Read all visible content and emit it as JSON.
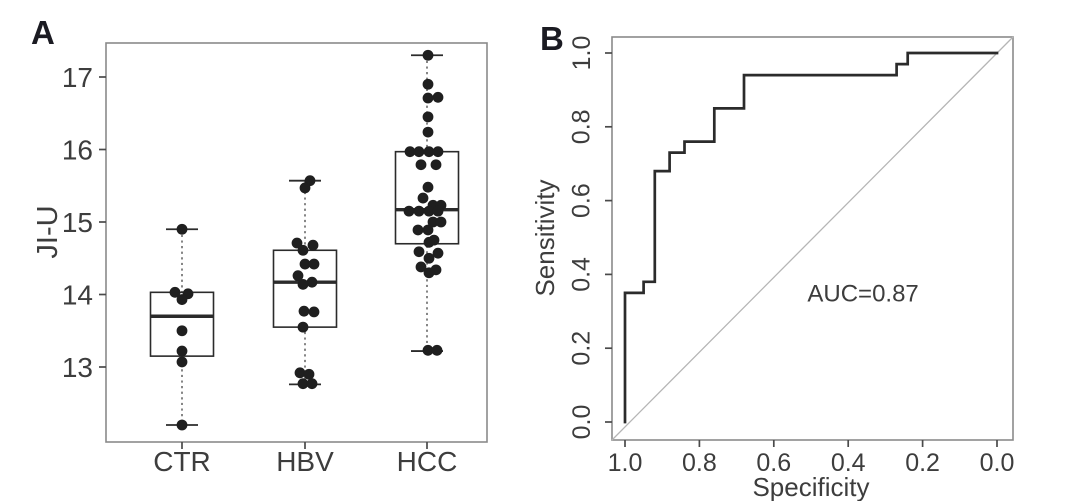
{
  "figure": {
    "panel_labels": [
      "A",
      "B"
    ]
  },
  "colors": {
    "background": "#ffffff",
    "ink": "#2b2b2b",
    "point": "#1f1f1f",
    "panel_border": "#8a8a8a",
    "tick": "#4a4a4a",
    "text": "#3d3d3d",
    "whisker_dash": "#5f5f5f",
    "diagonal": "#b5b5b5",
    "panel_label": "#1b1b22"
  },
  "chart_data": [
    {
      "type": "boxplot",
      "panel_label": "A",
      "title": "",
      "xlabel": "",
      "ylabel": "JI-U",
      "ylim": [
        11.95,
        17.55
      ],
      "grid": false,
      "y_ticks": [
        {
          "v": 13,
          "label": "13"
        },
        {
          "v": 14,
          "label": "14"
        },
        {
          "v": 15,
          "label": "15"
        },
        {
          "v": 16,
          "label": "16"
        },
        {
          "v": 17,
          "label": "17"
        }
      ],
      "categories": [
        "CTR",
        "HBV",
        "HCC"
      ],
      "groups": [
        {
          "name": "CTR",
          "q1": 13.15,
          "median": 13.7,
          "q3": 14.03,
          "whisker_low": 12.2,
          "whisker_high": 14.9,
          "points": [
            [
              14.9,
              0
            ],
            [
              14.03,
              -7
            ],
            [
              14.01,
              6
            ],
            [
              13.93,
              0
            ],
            [
              13.5,
              0
            ],
            [
              13.22,
              0
            ],
            [
              13.07,
              0
            ],
            [
              12.2,
              0
            ]
          ]
        },
        {
          "name": "HBV",
          "q1": 13.55,
          "median": 14.17,
          "q3": 14.61,
          "whisker_low": 12.76,
          "whisker_high": 15.57,
          "points": [
            [
              15.57,
              5
            ],
            [
              15.47,
              0
            ],
            [
              14.71,
              -8
            ],
            [
              14.68,
              8
            ],
            [
              14.61,
              -2
            ],
            [
              14.42,
              0
            ],
            [
              14.42,
              9
            ],
            [
              14.26,
              -7
            ],
            [
              14.17,
              7
            ],
            [
              14.14,
              -2
            ],
            [
              13.77,
              -1
            ],
            [
              13.76,
              9
            ],
            [
              13.55,
              -2
            ],
            [
              12.92,
              -5
            ],
            [
              12.9,
              4
            ],
            [
              12.77,
              -2
            ],
            [
              12.77,
              7
            ]
          ]
        },
        {
          "name": "HCC",
          "q1": 14.7,
          "median": 15.17,
          "q3": 15.97,
          "whisker_low": 13.22,
          "whisker_high": 17.3,
          "points": [
            [
              17.3,
              1
            ],
            [
              16.9,
              1
            ],
            [
              16.72,
              11
            ],
            [
              16.71,
              1
            ],
            [
              16.45,
              1
            ],
            [
              16.24,
              1
            ],
            [
              15.97,
              -17
            ],
            [
              15.97,
              -8
            ],
            [
              15.97,
              2
            ],
            [
              15.97,
              11
            ],
            [
              15.79,
              -6
            ],
            [
              15.79,
              9
            ],
            [
              15.48,
              1
            ],
            [
              15.33,
              -4
            ],
            [
              15.23,
              6
            ],
            [
              15.23,
              14
            ],
            [
              15.15,
              -18
            ],
            [
              15.15,
              -8
            ],
            [
              15.15,
              2
            ],
            [
              15.15,
              11
            ],
            [
              15.0,
              6
            ],
            [
              15.0,
              14
            ],
            [
              14.89,
              -9
            ],
            [
              14.89,
              1
            ],
            [
              14.75,
              7
            ],
            [
              14.72,
              2
            ],
            [
              14.59,
              -8
            ],
            [
              14.57,
              11
            ],
            [
              14.5,
              2
            ],
            [
              14.38,
              -6
            ],
            [
              14.34,
              9
            ],
            [
              14.3,
              2
            ],
            [
              13.23,
              1
            ],
            [
              13.23,
              10
            ]
          ]
        }
      ]
    },
    {
      "type": "line",
      "panel_label": "B",
      "title": "",
      "xlabel": "Specificity",
      "ylabel": "Sensitivity",
      "x_reversed": true,
      "xlim": [
        1.035,
        -0.045
      ],
      "ylim": [
        -0.045,
        1.045
      ],
      "grid": false,
      "x_ticks": [
        {
          "v": 1.0,
          "label": "1.0"
        },
        {
          "v": 0.8,
          "label": "0.8"
        },
        {
          "v": 0.6,
          "label": "0.6"
        },
        {
          "v": 0.4,
          "label": "0.4"
        },
        {
          "v": 0.2,
          "label": "0.2"
        },
        {
          "v": 0.0,
          "label": "0.0"
        }
      ],
      "y_ticks": [
        {
          "v": 0.0,
          "label": "0.0"
        },
        {
          "v": 0.2,
          "label": "0.2"
        },
        {
          "v": 0.4,
          "label": "0.4"
        },
        {
          "v": 0.6,
          "label": "0.6"
        },
        {
          "v": 0.8,
          "label": "0.8"
        },
        {
          "v": 1.0,
          "label": "1.0"
        }
      ],
      "diagonal_reference": true,
      "annotation": {
        "text": "AUC=0.87",
        "x": 0.36,
        "y": 0.35
      },
      "series": [
        {
          "name": "ROC curve",
          "points_spec_sens": [
            [
              1.0,
              0.0
            ],
            [
              1.0,
              0.35
            ],
            [
              0.95,
              0.35
            ],
            [
              0.95,
              0.38
            ],
            [
              0.92,
              0.38
            ],
            [
              0.92,
              0.68
            ],
            [
              0.88,
              0.68
            ],
            [
              0.88,
              0.73
            ],
            [
              0.84,
              0.73
            ],
            [
              0.84,
              0.76
            ],
            [
              0.76,
              0.76
            ],
            [
              0.76,
              0.85
            ],
            [
              0.68,
              0.85
            ],
            [
              0.68,
              0.94
            ],
            [
              0.27,
              0.94
            ],
            [
              0.27,
              0.97
            ],
            [
              0.24,
              0.97
            ],
            [
              0.24,
              1.0
            ],
            [
              0.0,
              1.0
            ]
          ]
        }
      ]
    }
  ]
}
